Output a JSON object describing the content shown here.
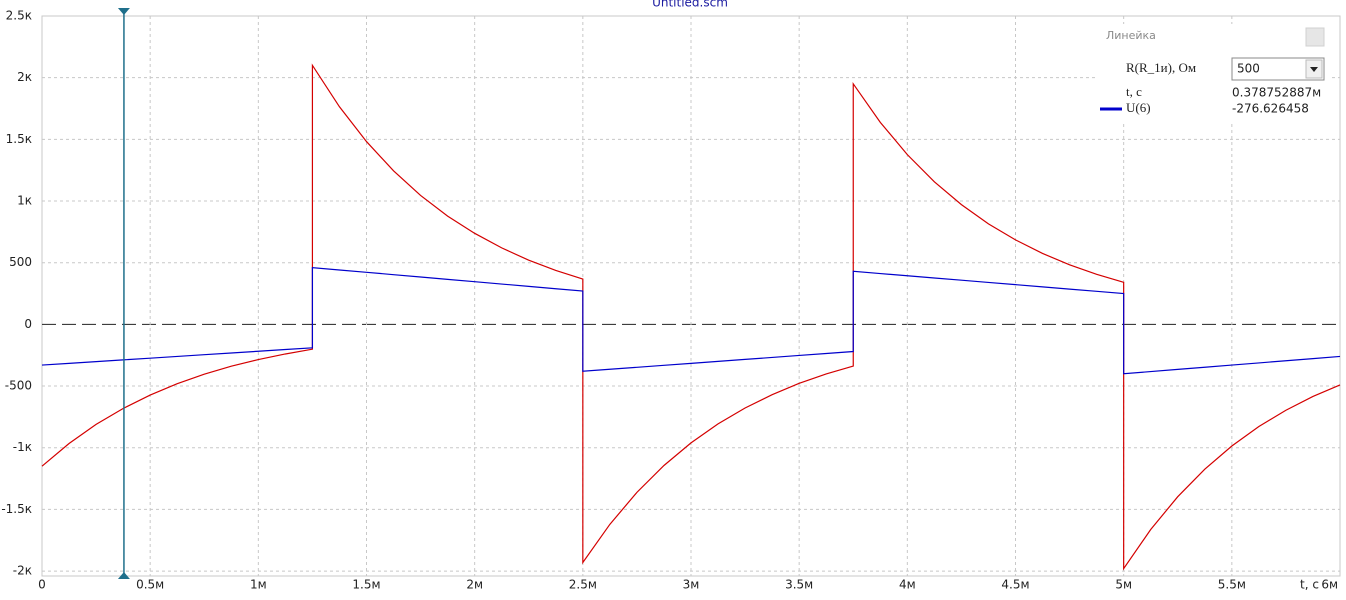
{
  "chart_data": {
    "type": "line",
    "title": "Untitled.scm",
    "xlabel": "t, c",
    "x": [
      0,
      0.125,
      0.25,
      0.375,
      0.5,
      0.625,
      0.75,
      0.875,
      1,
      1.125,
      1.25,
      1.25,
      1.375,
      1.5,
      1.625,
      1.75,
      1.875,
      2,
      2.125,
      2.25,
      2.375,
      2.5,
      2.5,
      2.625,
      2.75,
      2.875,
      3,
      3.125,
      3.25,
      3.375,
      3.5,
      3.625,
      3.75,
      3.75,
      3.875,
      4,
      4.125,
      4.25,
      4.375,
      4.5,
      4.625,
      4.75,
      4.875,
      5,
      5,
      5.125,
      5.25,
      5.375,
      5.5,
      5.625,
      5.75,
      5.875,
      6
    ],
    "series": [
      {
        "color": "#d40000",
        "values": [
          -1150,
          -966,
          -811,
          -682,
          -573,
          -481,
          -404,
          -339,
          -285,
          -240,
          -201,
          2100,
          1764,
          1482,
          1245,
          1045,
          878,
          738,
          620,
          520,
          437,
          367,
          -1930,
          -1621,
          -1362,
          -1144,
          -961,
          -807,
          -678,
          -570,
          -478,
          -402,
          -338,
          1950,
          1638,
          1376,
          1156,
          971,
          815,
          685,
          575,
          483,
          406,
          341,
          -1980,
          -1663,
          -1397,
          -1174,
          -986,
          -828,
          -696,
          -584,
          -491
        ]
      },
      {
        "name": "U(6)",
        "color": "#0000cc",
        "values": [
          -330,
          -316,
          -302,
          -288,
          -274,
          -260,
          -246,
          -232,
          -218,
          -204,
          -190,
          460,
          441,
          422,
          403,
          384,
          365,
          346,
          327,
          308,
          289,
          270,
          -380,
          -364,
          -348,
          -332,
          -316,
          -300,
          -284,
          -268,
          -252,
          -236,
          -220,
          430,
          412,
          394,
          376,
          358,
          340,
          322,
          304,
          286,
          268,
          250,
          -400,
          -382.5,
          -365,
          -347.5,
          -330,
          -312.5,
          -295,
          -277.5,
          -260
        ]
      }
    ],
    "xlim": [
      0,
      6
    ],
    "xticks": [
      0,
      {
        "value": 0.5,
        "label": "0.5м"
      },
      {
        "value": 1,
        "label": "1м"
      },
      {
        "value": 1.5,
        "label": "1.5м"
      },
      {
        "value": 2,
        "label": "2м"
      },
      {
        "value": 2.5,
        "label": "2.5м"
      },
      {
        "value": 3,
        "label": "3м"
      },
      {
        "value": 3.5,
        "label": "3.5м"
      },
      {
        "value": 4,
        "label": "4м"
      },
      {
        "value": 4.5,
        "label": "4.5м"
      },
      {
        "value": 5,
        "label": "5м"
      },
      {
        "value": 5.5,
        "label": "5.5м"
      },
      {
        "value": 6,
        "label": "6м"
      }
    ],
    "ylim": [
      -2040,
      2500
    ],
    "yticks": [
      {
        "value": 2500,
        "label": "2.5к"
      },
      {
        "value": 2000,
        "label": "2к"
      },
      {
        "value": 1500,
        "label": "1.5к"
      },
      {
        "value": 1000,
        "label": "1к"
      },
      500,
      0,
      -500,
      {
        "value": -1000,
        "label": "-1к"
      },
      {
        "value": -1500,
        "label": "-1.5к"
      },
      {
        "value": -2000,
        "label": "-2к"
      }
    ],
    "grid": true,
    "ruler": {
      "title": "Линейка",
      "param_label": "R(R_1и), Ом",
      "param_value": 500,
      "t_label": "t, c",
      "t": {
        "value": 0.378752887,
        "label": "0.378752887м"
      },
      "readout": -276.626458
    }
  }
}
